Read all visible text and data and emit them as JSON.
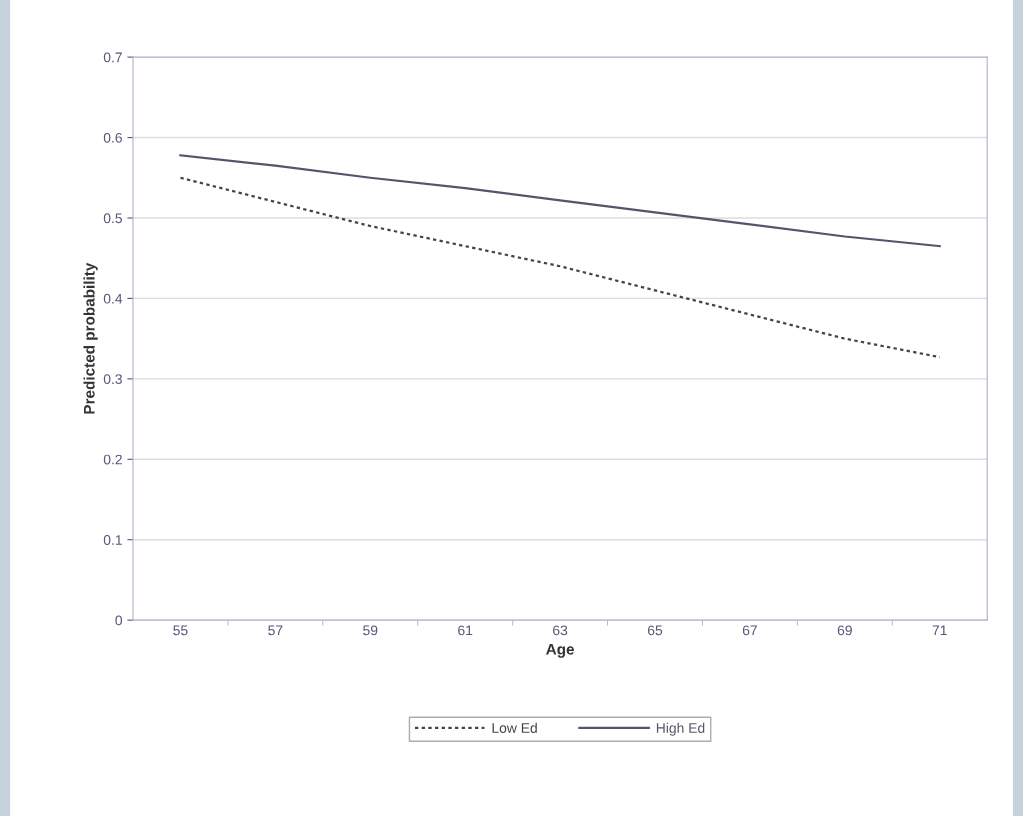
{
  "chart_data": {
    "type": "line",
    "xlabel": "Age",
    "ylabel": "Predicted probability",
    "categories": [
      "55",
      "57",
      "59",
      "61",
      "63",
      "65",
      "67",
      "69",
      "71"
    ],
    "series": [
      {
        "name": "Low Ed",
        "color": "#444444",
        "line_style": "dotted",
        "values": [
          0.55,
          0.52,
          0.49,
          0.465,
          0.44,
          0.41,
          0.38,
          0.35,
          0.327
        ]
      },
      {
        "name": "High Ed",
        "color": "#55556a",
        "line_style": "solid",
        "values": [
          0.578,
          0.565,
          0.55,
          0.537,
          0.522,
          0.507,
          0.492,
          0.477,
          0.465
        ]
      }
    ],
    "ylim": [
      0,
      0.7
    ],
    "yticks": [
      0,
      0.1,
      0.2,
      0.3,
      0.4,
      0.5,
      0.6,
      0.7
    ],
    "grid": "y",
    "legend": "bottom",
    "marker": "none"
  }
}
